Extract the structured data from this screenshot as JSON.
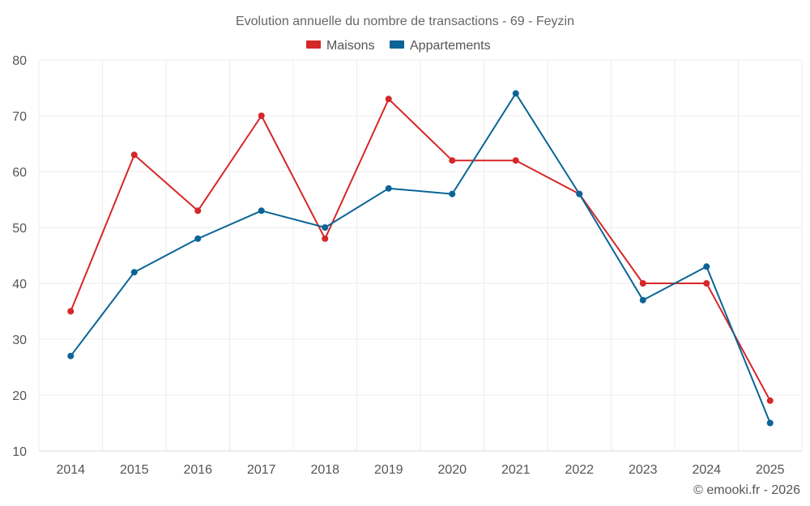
{
  "chart_data": {
    "type": "line",
    "title": "Evolution annuelle du nombre de transactions - 69 - Feyzin",
    "xlabel": "",
    "ylabel": "",
    "categories": [
      "2014",
      "2015",
      "2016",
      "2017",
      "2018",
      "2019",
      "2020",
      "2021",
      "2022",
      "2023",
      "2024",
      "2025"
    ],
    "ylim": [
      10,
      80
    ],
    "yticks": [
      10,
      20,
      30,
      40,
      50,
      60,
      70,
      80
    ],
    "grid": true,
    "legend_position": "top-center",
    "series": [
      {
        "name": "Maisons",
        "color": "#d62728",
        "values": [
          35,
          63,
          53,
          70,
          48,
          73,
          62,
          62,
          56,
          40,
          40,
          19
        ]
      },
      {
        "name": "Appartements",
        "color": "#0a6496",
        "values": [
          27,
          42,
          48,
          53,
          50,
          57,
          56,
          74,
          56,
          37,
          43,
          15
        ]
      }
    ]
  },
  "credit": "© emooki.fr - 2026"
}
